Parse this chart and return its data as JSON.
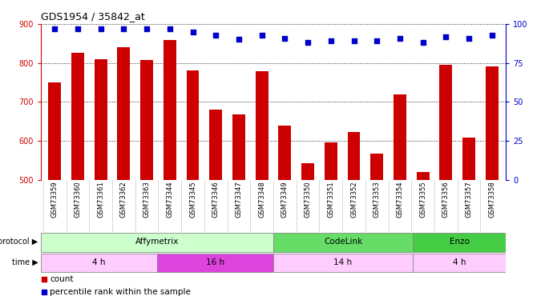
{
  "title": "GDS1954 / 35842_at",
  "samples": [
    "GSM73359",
    "GSM73360",
    "GSM73361",
    "GSM73362",
    "GSM73363",
    "GSM73344",
    "GSM73345",
    "GSM73346",
    "GSM73347",
    "GSM73348",
    "GSM73349",
    "GSM73350",
    "GSM73351",
    "GSM73352",
    "GSM73353",
    "GSM73354",
    "GSM73355",
    "GSM73356",
    "GSM73357",
    "GSM73358"
  ],
  "counts": [
    750,
    825,
    810,
    840,
    808,
    858,
    780,
    680,
    668,
    778,
    638,
    542,
    595,
    622,
    568,
    720,
    520,
    795,
    608,
    792
  ],
  "percentile_ranks": [
    97,
    97,
    97,
    97,
    97,
    97,
    95,
    93,
    90,
    93,
    91,
    88,
    89,
    89,
    89,
    91,
    88,
    92,
    91,
    93
  ],
  "bar_color": "#cc0000",
  "dot_color": "#0000cc",
  "ylim_left": [
    500,
    900
  ],
  "ylim_right": [
    0,
    100
  ],
  "yticks_left": [
    500,
    600,
    700,
    800,
    900
  ],
  "yticks_right": [
    0,
    25,
    50,
    75,
    100
  ],
  "protocol_groups": [
    {
      "label": "Affymetrix",
      "start": 0,
      "end": 9,
      "color": "#ccffcc"
    },
    {
      "label": "CodeLink",
      "start": 10,
      "end": 15,
      "color": "#66dd66"
    },
    {
      "label": "Enzo",
      "start": 16,
      "end": 19,
      "color": "#44cc44"
    }
  ],
  "time_groups": [
    {
      "label": "4 h",
      "start": 0,
      "end": 4,
      "color": "#ffccff"
    },
    {
      "label": "16 h",
      "start": 5,
      "end": 9,
      "color": "#dd44dd"
    },
    {
      "label": "14 h",
      "start": 10,
      "end": 15,
      "color": "#ffccff"
    },
    {
      "label": "4 h",
      "start": 16,
      "end": 19,
      "color": "#ffccff"
    }
  ],
  "left_axis_color": "#cc0000",
  "right_axis_color": "#0000cc"
}
